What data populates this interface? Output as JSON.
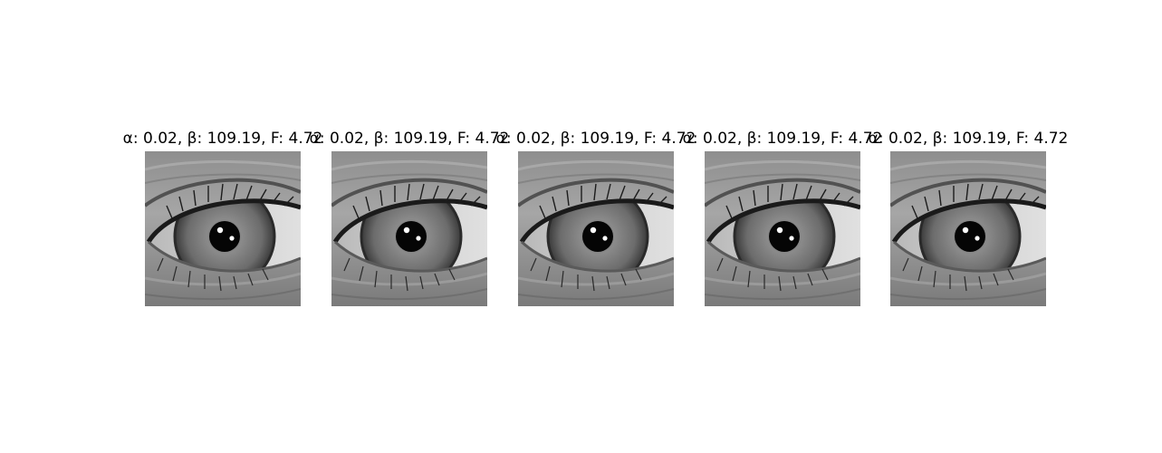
{
  "figure": {
    "panels": [
      {
        "title": "α: 0.02, β: 109.19, F: 4.72",
        "image": "grayscale-eye-closeup"
      },
      {
        "title": "α: 0.02, β: 109.19, F: 4.72",
        "image": "grayscale-eye-closeup"
      },
      {
        "title": "α: 0.02, β: 109.19, F: 4.72",
        "image": "grayscale-eye-closeup"
      },
      {
        "title": "α: 0.02, β: 109.19, F: 4.72",
        "image": "grayscale-eye-closeup"
      },
      {
        "title": "α: 0.02, β: 109.19, F: 4.72",
        "image": "grayscale-eye-closeup"
      }
    ]
  }
}
